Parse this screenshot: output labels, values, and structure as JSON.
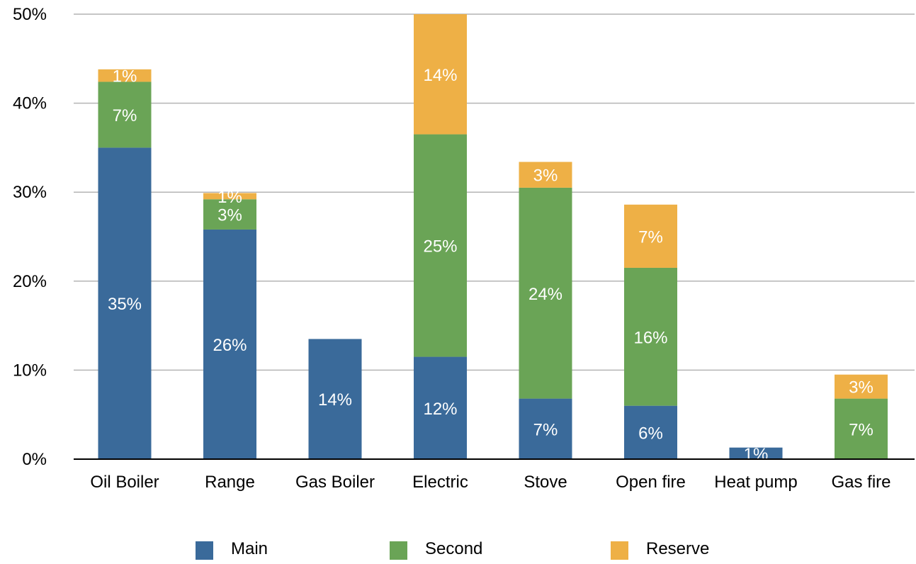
{
  "chart_data": {
    "type": "bar",
    "stacked": true,
    "categories": [
      "Oil Boiler",
      "Range",
      "Gas Boiler",
      "Electric",
      "Stove",
      "Open fire",
      "Heat pump",
      "Gas fire"
    ],
    "series": [
      {
        "name": "Main",
        "color": "#3a6a9a",
        "values": [
          35,
          25.8,
          13.5,
          11.5,
          6.8,
          6,
          1.3,
          0
        ],
        "labels": [
          "35%",
          "26%",
          "14%",
          "12%",
          "7%",
          "6%",
          "1%",
          ""
        ]
      },
      {
        "name": "Second",
        "color": "#6aa456",
        "values": [
          7.4,
          3.4,
          0,
          25,
          23.7,
          15.5,
          0,
          6.8
        ],
        "labels": [
          "7%",
          "3%",
          "",
          "25%",
          "24%",
          "16%",
          "",
          "7%"
        ]
      },
      {
        "name": "Reserve",
        "color": "#eeb046",
        "values": [
          1.4,
          0.7,
          0,
          13.5,
          2.9,
          7.1,
          0,
          2.7
        ],
        "labels": [
          "1%",
          "1%",
          "",
          "14%",
          "3%",
          "7%",
          "",
          "3%"
        ]
      }
    ],
    "ylim": [
      0,
      50
    ],
    "yticks": [
      "0%",
      "10%",
      "20%",
      "30%",
      "40%",
      "50%"
    ],
    "grid": true,
    "legend_position": "bottom"
  }
}
